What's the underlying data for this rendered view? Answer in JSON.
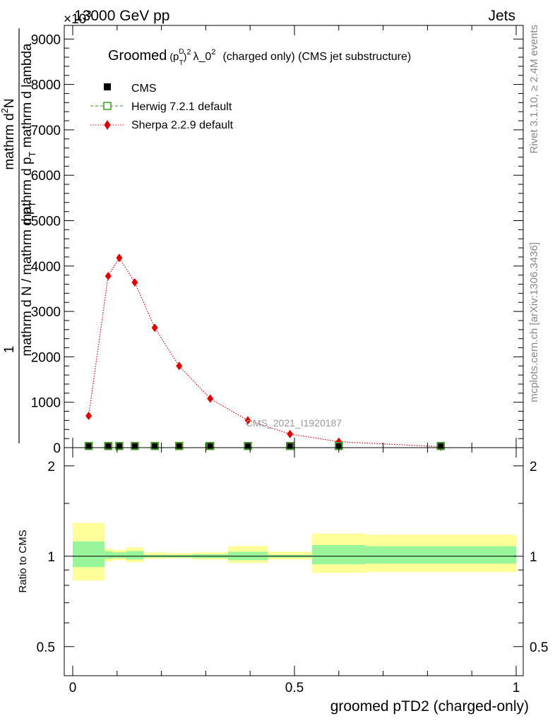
{
  "header": {
    "energy": "13000 GeV pp",
    "category": "Jets",
    "multiplier": "×10",
    "multiplier_exp": "3"
  },
  "side_labels": {
    "rivet": "Rivet 3.1.10, ≥ 2.4M events",
    "mcplots": "mcplots.cern.ch [arXiv:1306.3436]"
  },
  "watermark": "CMS_2021_I1920187",
  "colors": {
    "cms": "#000000",
    "herwig": "#3a9a1a",
    "sherpa": "#e00000",
    "band_inner": "#99f599",
    "band_outer": "#ffff99"
  },
  "chart_data": [
    {
      "type": "scatter",
      "title_prefix": "Groomed",
      "title_suffix": "λ_0",
      "title_paren": "(charged only) (CMS jet substructure)",
      "title_p": "p",
      "title_D": "D",
      "title_T": "T",
      "title_sq1": "2",
      "title_sq2": "2",
      "ylabel_frac_num": "mathrm d",
      "ylabel_frac_num_sup": "2",
      "ylabel_frac_num_N": "N",
      "ylabel_frac_den": "mathrm d p",
      "ylabel_frac_den_sub": "T",
      "ylabel_frac_den2": " mathrm d lambda",
      "ylabel_one": "1",
      "ylabel_main": "mathrm d N / mathrm d p",
      "ylabel_main_sub": "T",
      "xlim": [
        0,
        1
      ],
      "ylim": [
        0,
        9300
      ],
      "y_ticks": [
        0,
        1000,
        2000,
        3000,
        4000,
        5000,
        6000,
        7000,
        8000,
        9000
      ],
      "y_tick_labels": [
        "0",
        "1000",
        "2000",
        "3000",
        "4000",
        "5000",
        "6000",
        "7000",
        "8000",
        "9000"
      ],
      "legend": [
        {
          "name": "CMS",
          "marker": "filled-square"
        },
        {
          "name": "Herwig 7.2.1 default",
          "marker": "open-square",
          "line": "dashed"
        },
        {
          "name": "Sherpa 2.2.9 default",
          "marker": "diamond",
          "line": "dotted"
        }
      ],
      "series": [
        {
          "name": "Sherpa 2.2.9 default",
          "x": [
            0.036,
            0.08,
            0.105,
            0.14,
            0.185,
            0.24,
            0.31,
            0.395,
            0.49,
            0.6,
            0.83
          ],
          "y": [
            700,
            3780,
            4180,
            3640,
            2640,
            1800,
            1080,
            600,
            300,
            130,
            20
          ]
        },
        {
          "name": "Herwig 7.2.1 default",
          "x": [
            0.036,
            0.08,
            0.105,
            0.14,
            0.185,
            0.24,
            0.31,
            0.395,
            0.49,
            0.6,
            0.83
          ],
          "y": [
            5,
            5,
            5,
            5,
            5,
            5,
            5,
            5,
            5,
            5,
            5
          ]
        },
        {
          "name": "CMS",
          "x": [
            0.036,
            0.08,
            0.105,
            0.14,
            0.185,
            0.24,
            0.31,
            0.395,
            0.49,
            0.6,
            0.83
          ],
          "y": [
            5,
            5,
            5,
            5,
            5,
            5,
            5,
            5,
            5,
            5,
            5
          ]
        }
      ]
    },
    {
      "type": "area",
      "ylabel": "Ratio to CMS",
      "xlabel": "groomed pTD2 (charged-only)",
      "xlim": [
        0,
        1
      ],
      "ylim": [
        0.4,
        2.3
      ],
      "log_y": true,
      "y_ticks": [
        0.5,
        1,
        2
      ],
      "y_tick_labels": [
        "0.5",
        "1",
        "2"
      ],
      "x_ticks": [
        0,
        0.5,
        1
      ],
      "x_tick_labels": [
        "0",
        "0.5",
        "1"
      ],
      "reference_line": 1,
      "bins": [
        {
          "lo": 0.0,
          "hi": 0.072,
          "inner": [
            0.92,
            1.12
          ],
          "outer": [
            0.83,
            1.29
          ]
        },
        {
          "lo": 0.072,
          "hi": 0.09,
          "inner": [
            0.98,
            1.04
          ],
          "outer": [
            0.96,
            1.06
          ]
        },
        {
          "lo": 0.09,
          "hi": 0.12,
          "inner": [
            0.985,
            1.03
          ],
          "outer": [
            0.97,
            1.05
          ]
        },
        {
          "lo": 0.12,
          "hi": 0.16,
          "inner": [
            0.975,
            1.04
          ],
          "outer": [
            0.955,
            1.07
          ]
        },
        {
          "lo": 0.16,
          "hi": 0.21,
          "inner": [
            0.99,
            1.01
          ],
          "outer": [
            0.98,
            1.03
          ]
        },
        {
          "lo": 0.21,
          "hi": 0.27,
          "inner": [
            0.99,
            1.01
          ],
          "outer": [
            0.985,
            1.025
          ]
        },
        {
          "lo": 0.27,
          "hi": 0.35,
          "inner": [
            0.985,
            1.015
          ],
          "outer": [
            0.975,
            1.03
          ]
        },
        {
          "lo": 0.35,
          "hi": 0.44,
          "inner": [
            0.97,
            1.035
          ],
          "outer": [
            0.95,
            1.08
          ]
        },
        {
          "lo": 0.44,
          "hi": 0.54,
          "inner": [
            0.99,
            1.01
          ],
          "outer": [
            0.975,
            1.035
          ]
        },
        {
          "lo": 0.54,
          "hi": 0.66,
          "inner": [
            0.94,
            1.09
          ],
          "outer": [
            0.88,
            1.19
          ]
        },
        {
          "lo": 0.66,
          "hi": 1.0,
          "inner": [
            0.945,
            1.08
          ],
          "outer": [
            0.885,
            1.18
          ]
        }
      ]
    }
  ]
}
